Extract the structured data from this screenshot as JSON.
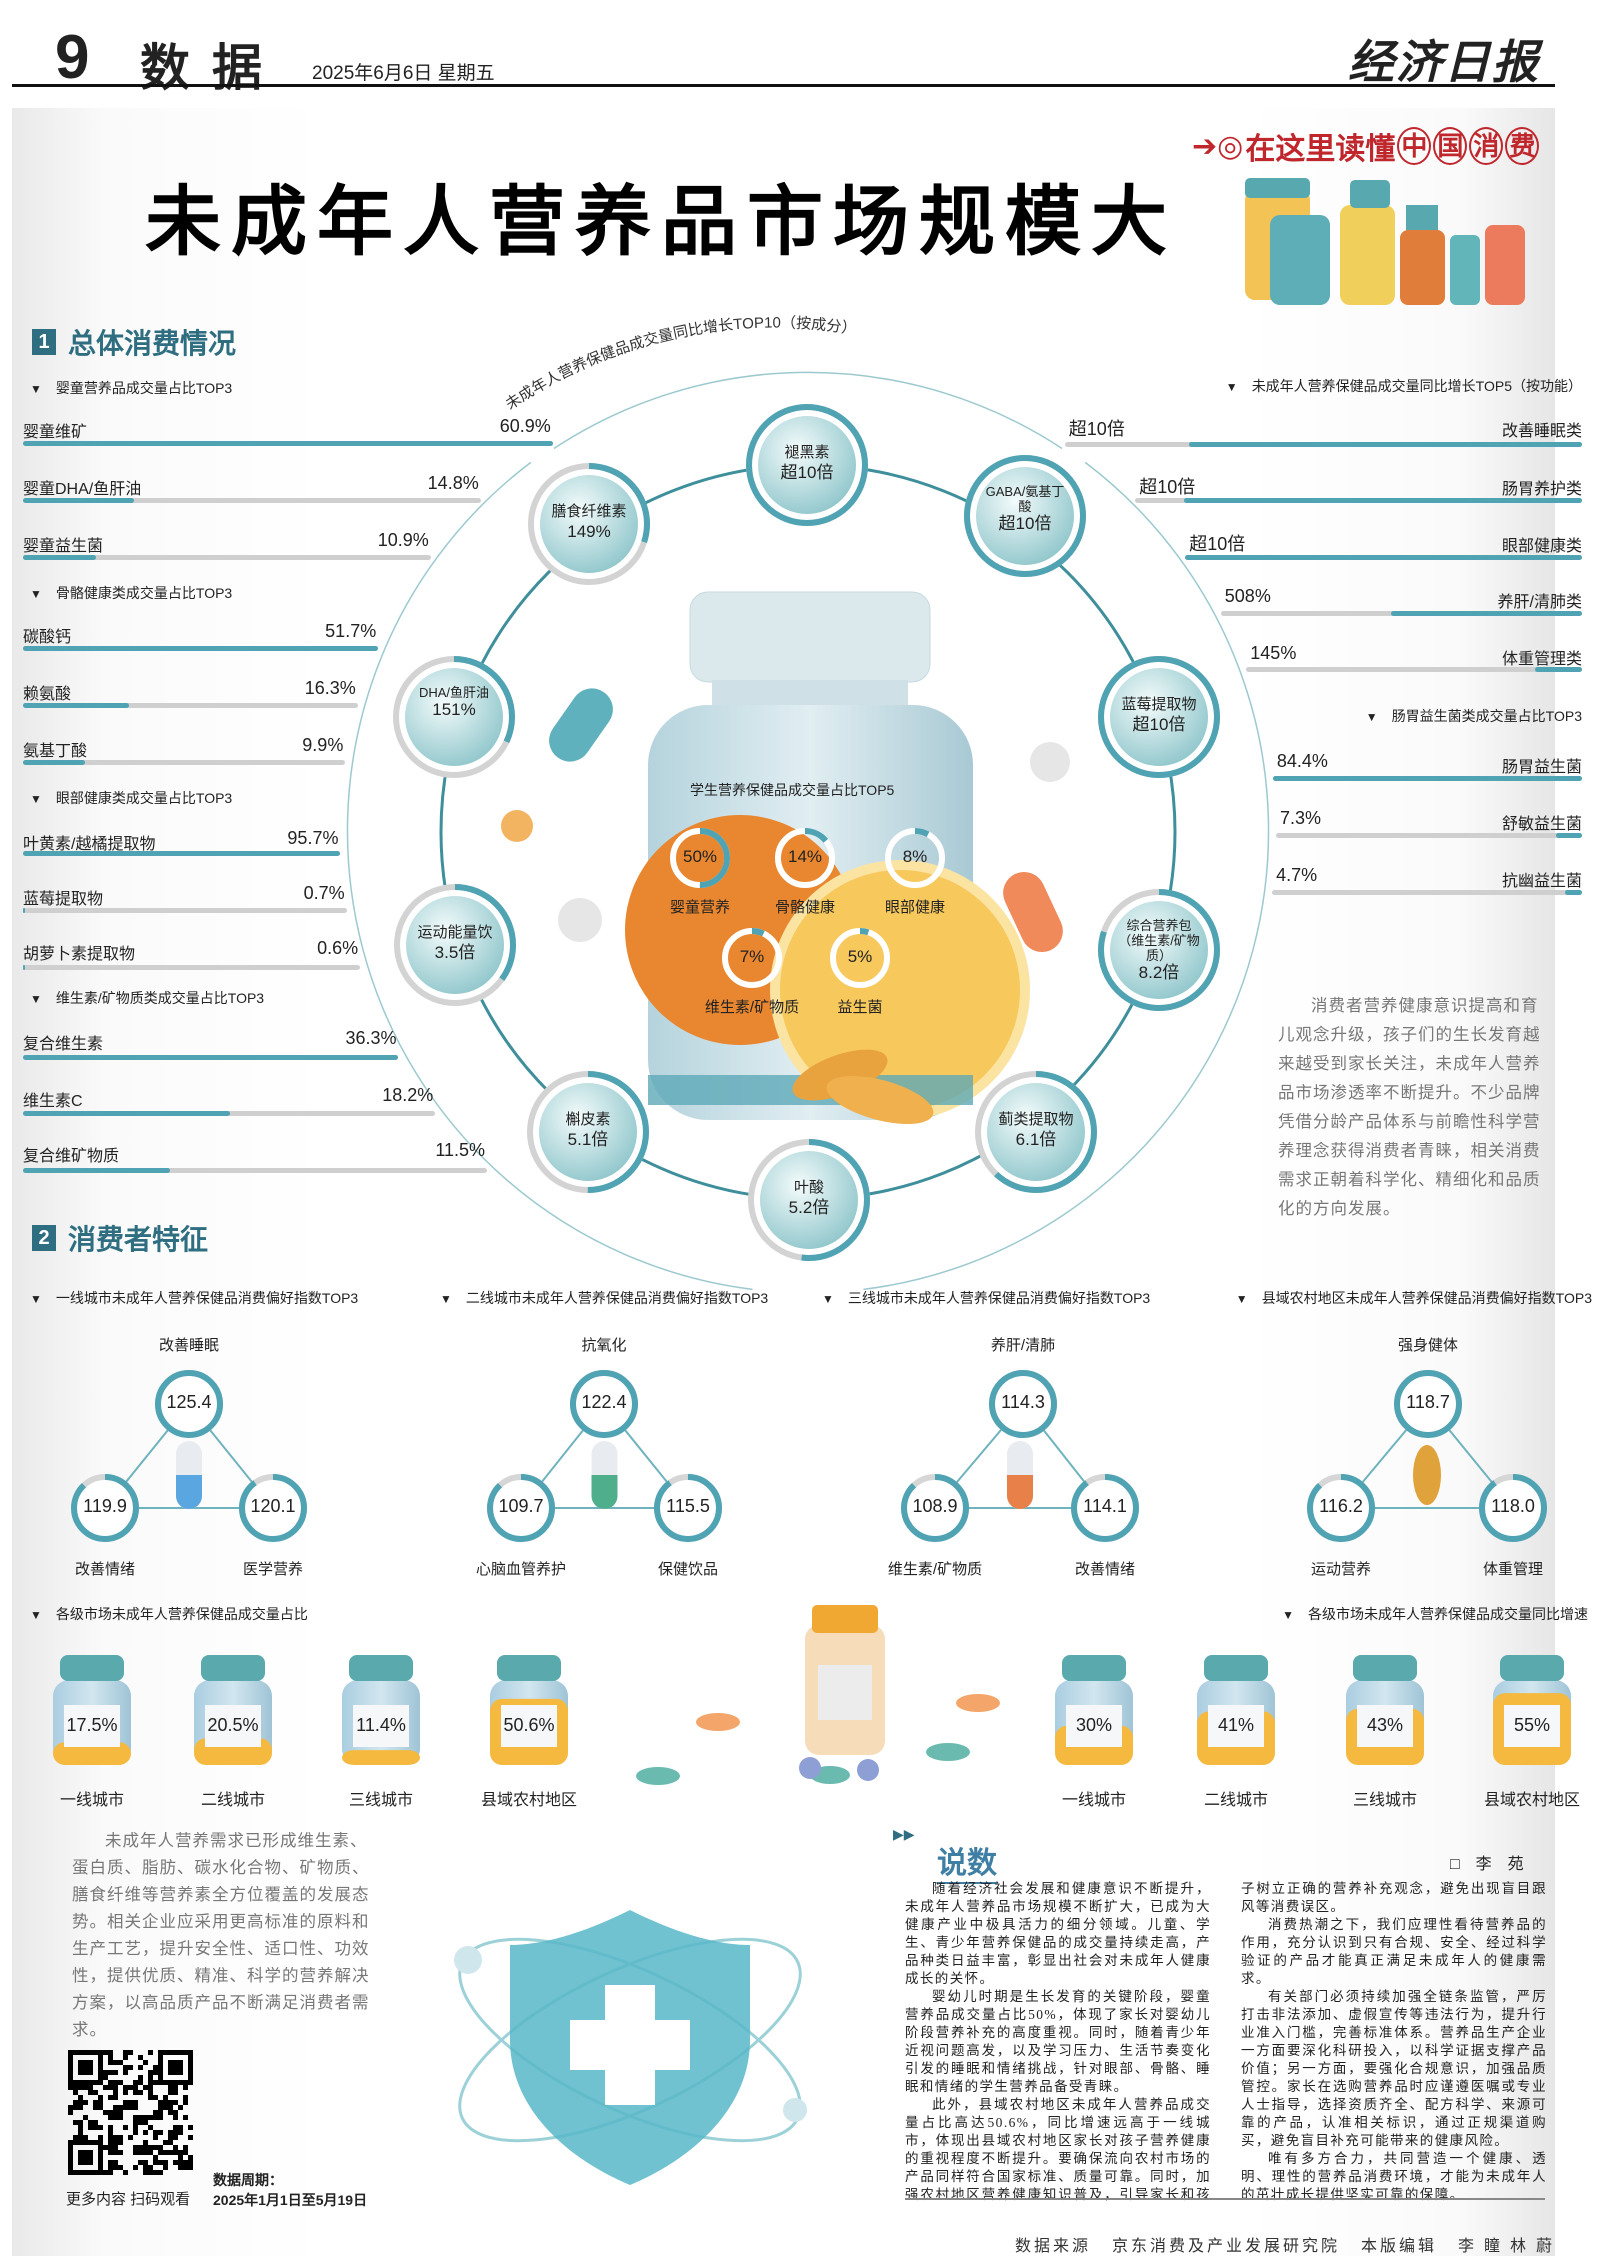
{
  "header": {
    "page_no": "9",
    "section": "数据",
    "date": "2025年6月6日  星期五",
    "logo": "经济日报"
  },
  "banner": {
    "prefix": "在这里读懂",
    "highlight": [
      "中",
      "国",
      "消",
      "费"
    ]
  },
  "title": "未成年人营养品市场规模大",
  "section1": {
    "num": "1",
    "title": "总体消费情况"
  },
  "left_groups": [
    {
      "title": "婴童营养品成交量占比TOP3",
      "rows": [
        {
          "label": "婴童维矿",
          "value": "60.9%",
          "pct": 60.9
        },
        {
          "label": "婴童DHA/鱼肝油",
          "value": "14.8%",
          "pct": 14.8
        },
        {
          "label": "婴童益生菌",
          "value": "10.9%",
          "pct": 10.9
        }
      ]
    },
    {
      "title": "骨骼健康类成交量占比TOP3",
      "rows": [
        {
          "label": "碳酸钙",
          "value": "51.7%",
          "pct": 51.7
        },
        {
          "label": "赖氨酸",
          "value": "16.3%",
          "pct": 16.3
        },
        {
          "label": "氨基丁酸",
          "value": "9.9%",
          "pct": 9.9
        }
      ]
    },
    {
      "title": "眼部健康类成交量占比TOP3",
      "rows": [
        {
          "label": "叶黄素/越橘提取物",
          "value": "95.7%",
          "pct": 95.7
        },
        {
          "label": "蓝莓提取物",
          "value": "0.7%",
          "pct": 0.7
        },
        {
          "label": "胡萝卜素提取物",
          "value": "0.6%",
          "pct": 0.6
        }
      ]
    },
    {
      "title": "维生素/矿物质类成交量占比TOP3",
      "rows": [
        {
          "label": "复合维生素",
          "value": "36.3%",
          "pct": 36.3
        },
        {
          "label": "维生素C",
          "value": "18.2%",
          "pct": 18.2
        },
        {
          "label": "复合维矿物质",
          "value": "11.5%",
          "pct": 11.5
        }
      ]
    }
  ],
  "right_top5": {
    "title": "未成年人营养保健品成交量同比增长TOP5（按功能）",
    "rows": [
      {
        "label": "改善睡眠类",
        "value": "超10倍",
        "fill": 0.76
      },
      {
        "label": "肠胃养护类",
        "value": "超10倍",
        "fill": 0.89
      },
      {
        "label": "眼部健康类",
        "value": "超10倍",
        "fill": 1.0
      },
      {
        "label": "养肝/清肺类",
        "value": "508%",
        "fill": 0.53
      },
      {
        "label": "体重管理类",
        "value": "145%",
        "fill": 0.14
      }
    ]
  },
  "right_probiotic": {
    "title": "肠胃益生菌类成交量占比TOP3",
    "rows": [
      {
        "label": "肠胃益生菌",
        "value": "84.4%",
        "pct": 84.4
      },
      {
        "label": "舒敏益生菌",
        "value": "7.3%",
        "pct": 7.3
      },
      {
        "label": "抗幽益生菌",
        "value": "4.7%",
        "pct": 4.7
      }
    ]
  },
  "ring": {
    "title": "未成年人营养保健品成交量同比增长TOP10（按成分）",
    "nodes": [
      {
        "name": "褪黑素",
        "value": "超10倍"
      },
      {
        "name": "GABA/氨基丁酸",
        "value": "超10倍"
      },
      {
        "name": "蓝莓提取物",
        "value": "超10倍"
      },
      {
        "name": "综合营养包（维生素/矿物质）",
        "value": "8.2倍"
      },
      {
        "name": "蓟类提取物",
        "value": "6.1倍"
      },
      {
        "name": "叶酸",
        "value": "5.2倍"
      },
      {
        "name": "槲皮素",
        "value": "5.1倍"
      },
      {
        "name": "运动能量饮",
        "value": "3.5倍"
      },
      {
        "name": "DHA/鱼肝油",
        "value": "151%"
      },
      {
        "name": "膳食纤维素",
        "value": "149%"
      }
    ]
  },
  "student": {
    "title": "学生营养保健品成交量占比TOP5",
    "items": [
      {
        "label": "婴童营养",
        "value": "50%",
        "pct": 50
      },
      {
        "label": "骨骼健康",
        "value": "14%",
        "pct": 14
      },
      {
        "label": "眼部健康",
        "value": "8%",
        "pct": 8
      },
      {
        "label": "维生素/矿物质",
        "value": "7%",
        "pct": 7
      },
      {
        "label": "益生菌",
        "value": "5%",
        "pct": 5
      }
    ]
  },
  "right_note": "消费者营养健康意识提高和育儿观念升级，孩子们的生长发育越来越受到家长关注，未成年人营养品市场渗透率不断提升。不少品牌凭借分龄产品体系与前瞻性科学营养理念获得消费者青睐，相关消费需求正朝着科学化、精细化和品质化的方向发展。",
  "section2": {
    "num": "2",
    "title": "消费者特征"
  },
  "preference": [
    {
      "title": "一线城市未成年人营养保健品消费偏好指数TOP3",
      "top": {
        "label": "改善睡眠",
        "value": "125.4"
      },
      "left": {
        "label": "改善情绪",
        "value": "119.9"
      },
      "right": {
        "label": "医学营养",
        "value": "120.1"
      },
      "capsule_color": "#5aa6e0"
    },
    {
      "title": "二线城市未成年人营养保健品消费偏好指数TOP3",
      "top": {
        "label": "抗氧化",
        "value": "122.4"
      },
      "left": {
        "label": "心脑血管养护",
        "value": "109.7"
      },
      "right": {
        "label": "保健饮品",
        "value": "115.5"
      },
      "capsule_color": "#4fae8c"
    },
    {
      "title": "三线城市未成年人营养保健品消费偏好指数TOP3",
      "top": {
        "label": "养肝/清肺",
        "value": "114.3"
      },
      "left": {
        "label": "维生素/矿物质",
        "value": "108.9"
      },
      "right": {
        "label": "改善情绪",
        "value": "114.1"
      },
      "capsule_color": "#e8804a"
    },
    {
      "title": "县域农村地区未成年人营养保健品消费偏好指数TOP3",
      "top": {
        "label": "强身健体",
        "value": "118.7"
      },
      "left": {
        "label": "运动营养",
        "value": "116.2"
      },
      "right": {
        "label": "体重管理",
        "value": "118.0"
      },
      "capsule_color": "#e0a23a"
    }
  ],
  "share": {
    "title": "各级市场未成年人营养保健品成交量占比",
    "items": [
      {
        "label": "一线城市",
        "value": "17.5%",
        "pct": 17.5
      },
      {
        "label": "二线城市",
        "value": "20.5%",
        "pct": 20.5
      },
      {
        "label": "三线城市",
        "value": "11.4%",
        "pct": 11.4
      },
      {
        "label": "县域农村地区",
        "value": "50.6%",
        "pct": 50.6
      }
    ]
  },
  "growth": {
    "title": "各级市场未成年人营养保健品成交量同比增速",
    "items": [
      {
        "label": "一线城市",
        "value": "30%",
        "pct": 30
      },
      {
        "label": "二线城市",
        "value": "41%",
        "pct": 41
      },
      {
        "label": "三线城市",
        "value": "43%",
        "pct": 43
      },
      {
        "label": "县域农村地区",
        "value": "55%",
        "pct": 55
      }
    ]
  },
  "left_note": "未成年人营养需求已形成维生素、蛋白质、脂肪、碳水化合物、矿物质、膳食纤维等营养素全方位覆盖的发展态势。相关企业应采用更高标准的原料和生产工艺，提升安全性、适口性、功效性，提供优质、精准、科学的营养解决方案，以高品质产品不断满足消费者需求。",
  "qr": {
    "caption": "更多内容 扫码观看"
  },
  "period": {
    "label": "数据周期：",
    "value": "2025年1月1日至5月19日"
  },
  "commentary": {
    "heading": "说数",
    "author": "□ 李  苑",
    "paragraphs": [
      "随着经济社会发展和健康意识不断提升，未成年人营养品市场规模不断扩大，已成为大健康产业中极具活力的细分领域。儿童、学生、青少年营养保健品的成交量持续走高，产品种类日益丰富，彰显出社会对未成年人健康成长的关怀。",
      "婴幼儿时期是生长发育的关键阶段，婴童营养品成交量占比50%，体现了家长对婴幼儿阶段营养补充的高度重视。同时，随着青少年近视问题高发，以及学习压力、生活节奏变化引发的睡眠和情绪挑战，针对眼部、骨骼、睡眠和情绪的学生营养品备受青睐。",
      "此外，县域农村地区未成年人营养品成交量占比高达50.6%，同比增速远高于一线城市，体现出县域农村地区家长对孩子营养健康的重视程度不断提升。要确保流向农村市场的产品同样符合国家标准、质量可靠。同时，加强农村地区营养健康知识普及，引导家长和孩子树立正确的营养补充观念，避免出现盲目跟风等消费误区。",
      "消费热潮之下，我们应理性看待营养品的作用，充分认识到只有合规、安全、经过科学验证的产品才能真正满足未成年人的健康需求。",
      "有关部门必须持续加强全链条监管，严厉打击非法添加、虚假宣传等违法行为，提升行业准入门槛，完善标准体系。营养品生产企业一方面要深化科研投入，以科学证据支撑产品价值；另一方面，要强化合规意识，加强品质管控。家长在选购营养品时应谨遵医嘱或专业人士指导，选择资质齐全、配方科学、来源可靠的产品，认准相关标识，通过正规渠道购买，避免盲目补充可能带来的健康风险。",
      "唯有多方合力，共同营造一个健康、透明、理性的营养品消费环境，才能为未成年人的茁壮成长提供坚实可靠的保障。"
    ]
  },
  "footer": {
    "source_label": "数据来源",
    "source": "京东消费及产业发展研究院",
    "editor_label": "本版编辑",
    "editors": "李 瞳  林 蔚"
  },
  "colors": {
    "accent": "#4fa3b3",
    "section": "#2e6e80",
    "track": "#cfcfcf",
    "banner_red": "#c0272d",
    "ring_line": "#3e8f9b",
    "liquid": "#f4b93e"
  }
}
